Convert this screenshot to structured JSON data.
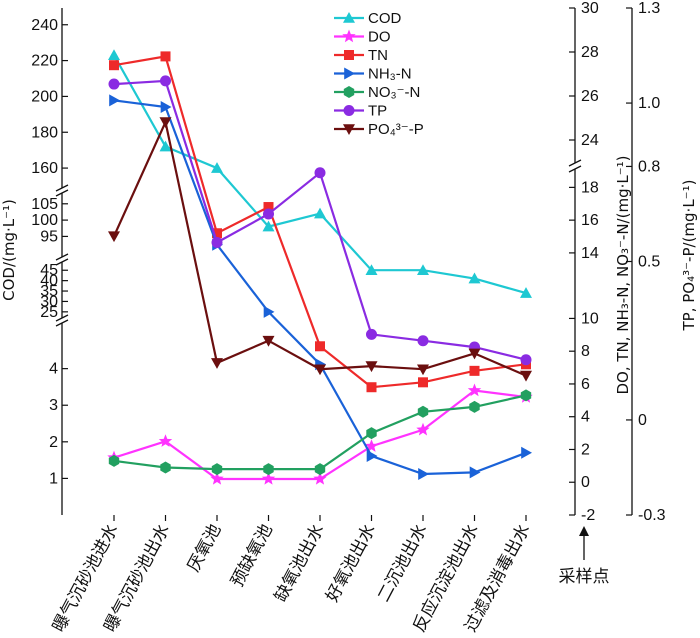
{
  "chart_data": {
    "type": "line",
    "categories": [
      "曝气沉砂池进水",
      "曝气沉砂池出水",
      "厌氧池",
      "预缺氧池",
      "缺氧池出水",
      "好氧池出水",
      "二沉池出水",
      "反应沉淀池出水",
      "过滤及消毒出水"
    ],
    "xlabel": "采样点",
    "axes": {
      "left": {
        "label": "COD/(mg·L⁻¹)",
        "ticks": [
          "240",
          "220",
          "200",
          "180",
          "160",
          "105",
          "100",
          "95",
          "45",
          "40",
          "35",
          "30",
          "25",
          "4",
          "3",
          "2",
          "1"
        ]
      },
      "middle": {
        "label": "DO, TN, NH₃-N, NO₃⁻-N/(mg·L⁻¹)",
        "ticks": [
          "30",
          "28",
          "26",
          "24",
          "18",
          "16",
          "14",
          "10",
          "8",
          "6",
          "4",
          "2",
          "0",
          "-2"
        ]
      },
      "right": {
        "label": "TP, PO₄³⁻-P/(mg·L⁻¹)",
        "ticks": [
          "1.3",
          "1.0",
          "0.8",
          "0.5",
          "0",
          "-0.3"
        ]
      }
    },
    "series": [
      {
        "name": "COD",
        "axis": "left",
        "color": "#1ec8d2",
        "marker": "triangle-up",
        "values": [
          223,
          172,
          160,
          98,
          102,
          45,
          45,
          41,
          34
        ]
      },
      {
        "name": "DO",
        "axis": "middle",
        "color": "#ff33ff",
        "marker": "star",
        "values": [
          1.5,
          2.5,
          0.2,
          0.2,
          0.2,
          2.2,
          3.2,
          5.6,
          5.2
        ]
      },
      {
        "name": "TN",
        "axis": "middle",
        "color": "#ee2a2a",
        "marker": "square",
        "values": [
          27.4,
          27.8,
          15.2,
          16.8,
          8.3,
          5.8,
          6.1,
          6.8,
          7.2
        ]
      },
      {
        "name": "NH₃-N",
        "axis": "middle",
        "color": "#1a62d8",
        "marker": "triangle-right",
        "values": [
          25.8,
          25.5,
          14.5,
          10.4,
          7.2,
          1.6,
          0.5,
          0.6,
          1.8
        ]
      },
      {
        "name": "NO₃⁻-N",
        "axis": "middle",
        "color": "#22a060",
        "marker": "hexagon",
        "values": [
          1.3,
          0.9,
          0.8,
          0.8,
          0.8,
          3.0,
          4.3,
          4.6,
          5.3
        ]
      },
      {
        "name": "TP",
        "axis": "right",
        "color": "#8a2be2",
        "marker": "circle",
        "values": [
          1.06,
          1.07,
          0.56,
          0.65,
          0.78,
          0.27,
          0.25,
          0.23,
          0.19
        ]
      },
      {
        "name": "PO₄³⁻-P",
        "axis": "right",
        "color": "#6b0f0f",
        "marker": "triangle-down",
        "values": [
          0.58,
          0.94,
          0.18,
          0.25,
          0.16,
          0.17,
          0.16,
          0.21,
          0.14
        ]
      }
    ]
  }
}
